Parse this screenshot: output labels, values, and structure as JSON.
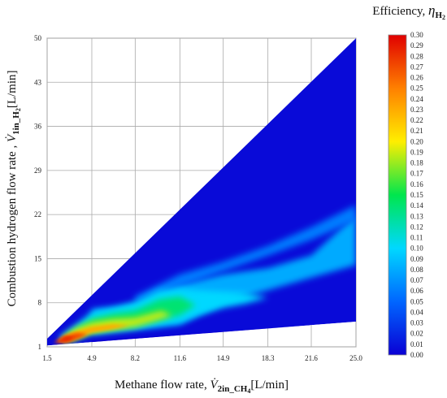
{
  "chart_data": {
    "type": "heatmap",
    "title": "",
    "xlabel": {
      "main": "Methane flow rate, ",
      "symbol": "V̇",
      "sub": "2in_CH",
      "sub2": "4",
      "unit": "[L/min]"
    },
    "ylabel": {
      "main": "Combustion hydrogen flow rate , ",
      "symbol": "V̇",
      "sub": "1in_H",
      "sub2": "2",
      "unit": "[L/min]"
    },
    "x_ticks": [
      "1.5",
      "4.9",
      "8.2",
      "11.6",
      "14.9",
      "18.3",
      "21.6",
      "25.0"
    ],
    "y_ticks": [
      "1",
      "8",
      "15",
      "22",
      "29",
      "36",
      "43",
      "50"
    ],
    "xlim": [
      1.5,
      25.0
    ],
    "ylim": [
      1,
      50
    ],
    "grid": true,
    "colorbar": {
      "title_main": "Efficiency, ",
      "title_symbol": "η",
      "title_sub": "H",
      "title_sub2": "2",
      "min": 0.0,
      "max": 0.3,
      "ticks": [
        "0.30",
        "0.29",
        "0.28",
        "0.27",
        "0.26",
        "0.25",
        "0.24",
        "0.23",
        "0.22",
        "0.21",
        "0.20",
        "0.19",
        "0.18",
        "0.17",
        "0.16",
        "0.15",
        "0.14",
        "0.13",
        "0.12",
        "0.11",
        "0.10",
        "0.09",
        "0.08",
        "0.07",
        "0.06",
        "0.05",
        "0.04",
        "0.03",
        "0.02",
        "0.01",
        "0.00"
      ],
      "colors": [
        "#0a00d4",
        "#0066ff",
        "#00d8ff",
        "#00e64d",
        "#ffee00",
        "#ff8000",
        "#e00000"
      ]
    },
    "domain": {
      "description_points": [
        [
          1.5,
          1.2
        ],
        [
          25.0,
          5.0
        ],
        [
          25.0,
          50.0
        ],
        [
          1.5,
          2.3
        ]
      ]
    },
    "regions": [
      {
        "level": 0.08,
        "polygon": [
          [
            4.9,
            7.0
          ],
          [
            8.2,
            7.5
          ],
          [
            11.6,
            11.0
          ],
          [
            14.9,
            12.5
          ],
          [
            18.3,
            13.5
          ],
          [
            21.6,
            15.5
          ],
          [
            25.0,
            22.0
          ],
          [
            25.0,
            14.0
          ],
          [
            21.6,
            12.0
          ],
          [
            18.3,
            10.0
          ],
          [
            14.9,
            8.0
          ],
          [
            11.6,
            4.6
          ],
          [
            8.2,
            3.8
          ],
          [
            4.9,
            3.0
          ]
        ]
      },
      {
        "level": 0.06,
        "polygon": [
          [
            8.2,
            9.0
          ],
          [
            11.6,
            12.5
          ],
          [
            14.9,
            14.5
          ],
          [
            18.3,
            17.0
          ],
          [
            21.6,
            20.0
          ],
          [
            25.0,
            23.5
          ],
          [
            25.0,
            21.0
          ],
          [
            21.6,
            18.0
          ],
          [
            18.3,
            15.5
          ],
          [
            14.9,
            13.0
          ],
          [
            11.6,
            10.5
          ],
          [
            8.2,
            8.0
          ]
        ]
      },
      {
        "level": 0.1,
        "polygon": [
          [
            2.4,
            2.5
          ],
          [
            3.7,
            4.5
          ],
          [
            4.9,
            6.5
          ],
          [
            6.5,
            7.2
          ],
          [
            8.2,
            8.2
          ],
          [
            10.0,
            10.0
          ],
          [
            11.6,
            10.3
          ],
          [
            13.0,
            10.0
          ],
          [
            14.9,
            9.8
          ],
          [
            16.5,
            9.6
          ],
          [
            18.3,
            8.8
          ],
          [
            16.5,
            7.8
          ],
          [
            14.9,
            7.2
          ],
          [
            13.0,
            6.0
          ],
          [
            11.6,
            4.8
          ],
          [
            8.2,
            3.9
          ],
          [
            4.9,
            3.2
          ],
          [
            2.8,
            1.6
          ]
        ]
      },
      {
        "level": 0.14,
        "polygon": [
          [
            3.0,
            2.8
          ],
          [
            4.9,
            5.5
          ],
          [
            6.5,
            6.3
          ],
          [
            8.2,
            6.8
          ],
          [
            10.0,
            8.5
          ],
          [
            11.6,
            9.0
          ],
          [
            12.8,
            7.6
          ],
          [
            11.6,
            6.0
          ],
          [
            10.0,
            5.2
          ],
          [
            8.2,
            4.3
          ],
          [
            4.9,
            3.4
          ],
          [
            3.2,
            2.0
          ]
        ]
      },
      {
        "level": 0.19,
        "polygon": [
          [
            2.6,
            2.4
          ],
          [
            3.7,
            4.0
          ],
          [
            4.9,
            4.9
          ],
          [
            6.5,
            5.4
          ],
          [
            8.2,
            5.6
          ],
          [
            10.2,
            6.7
          ],
          [
            11.0,
            6.0
          ],
          [
            9.5,
            5.0
          ],
          [
            8.2,
            4.2
          ],
          [
            4.9,
            3.3
          ],
          [
            3.0,
            1.8
          ]
        ]
      },
      {
        "level": 0.23,
        "polygon": [
          [
            2.3,
            2.0
          ],
          [
            3.4,
            3.3
          ],
          [
            4.9,
            4.2
          ],
          [
            6.5,
            4.6
          ],
          [
            7.8,
            4.4
          ],
          [
            6.5,
            3.8
          ],
          [
            4.9,
            3.2
          ],
          [
            2.9,
            1.7
          ]
        ]
      },
      {
        "level": 0.27,
        "polygon": [
          [
            2.0,
            1.6
          ],
          [
            2.8,
            2.8
          ],
          [
            3.8,
            3.2
          ],
          [
            4.6,
            3.0
          ],
          [
            3.9,
            2.3
          ],
          [
            3.0,
            1.7
          ]
        ]
      },
      {
        "level": 0.29,
        "polygon": [
          [
            2.2,
            1.7
          ],
          [
            2.9,
            2.5
          ],
          [
            3.6,
            2.6
          ],
          [
            3.2,
            2.0
          ]
        ]
      }
    ],
    "notch": {
      "level": 0.0,
      "polygon": [
        [
          4.9,
          2.0
        ],
        [
          25.0,
          4.9
        ],
        [
          25.0,
          4.6
        ],
        [
          4.9,
          1.3
        ]
      ]
    }
  }
}
